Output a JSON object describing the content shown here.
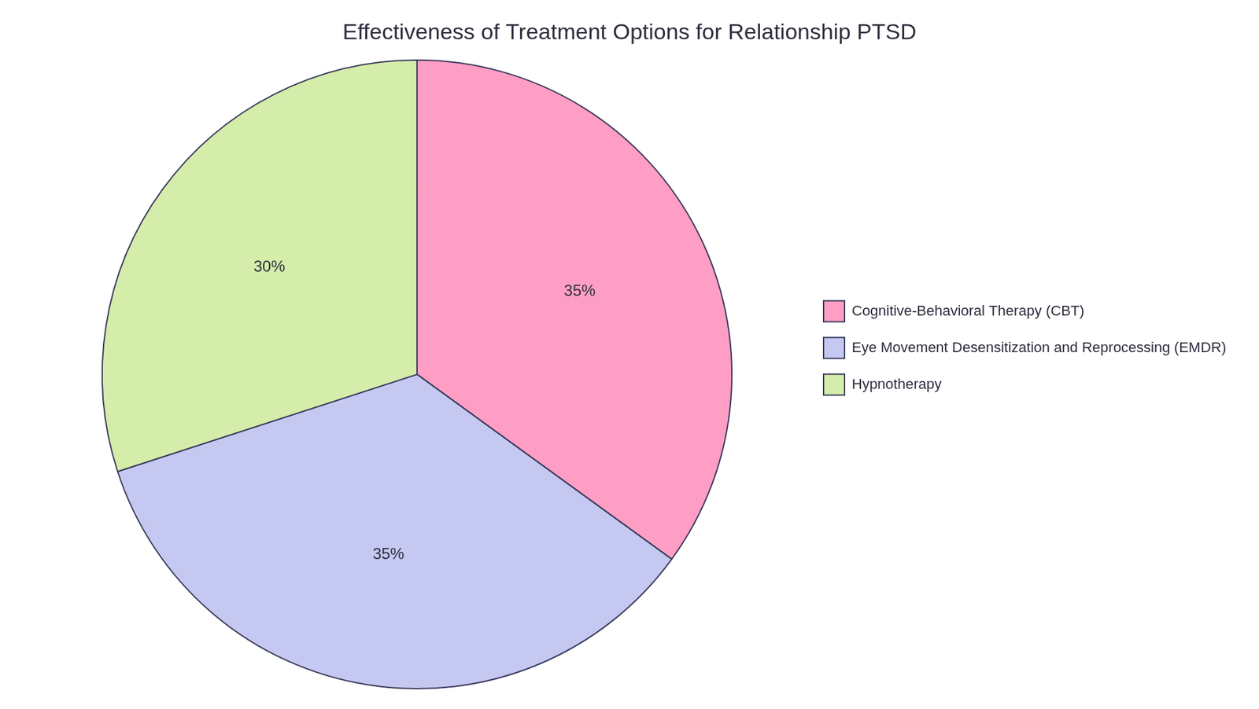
{
  "chart_data": {
    "type": "pie",
    "title": "Effectiveness of Treatment Options for Relationship PTSD",
    "categories": [
      "Cognitive-Behavioral Therapy (CBT)",
      "Eye Movement Desensitization and Reprocessing (EMDR)",
      "Hypnotherapy"
    ],
    "values": [
      35,
      35,
      30
    ],
    "value_labels": [
      "35%",
      "35%",
      "30%"
    ],
    "colors": [
      "#FF9EC4",
      "#C5C8F0",
      "#D4EDAA"
    ],
    "data_labels": true,
    "legend": "right"
  }
}
